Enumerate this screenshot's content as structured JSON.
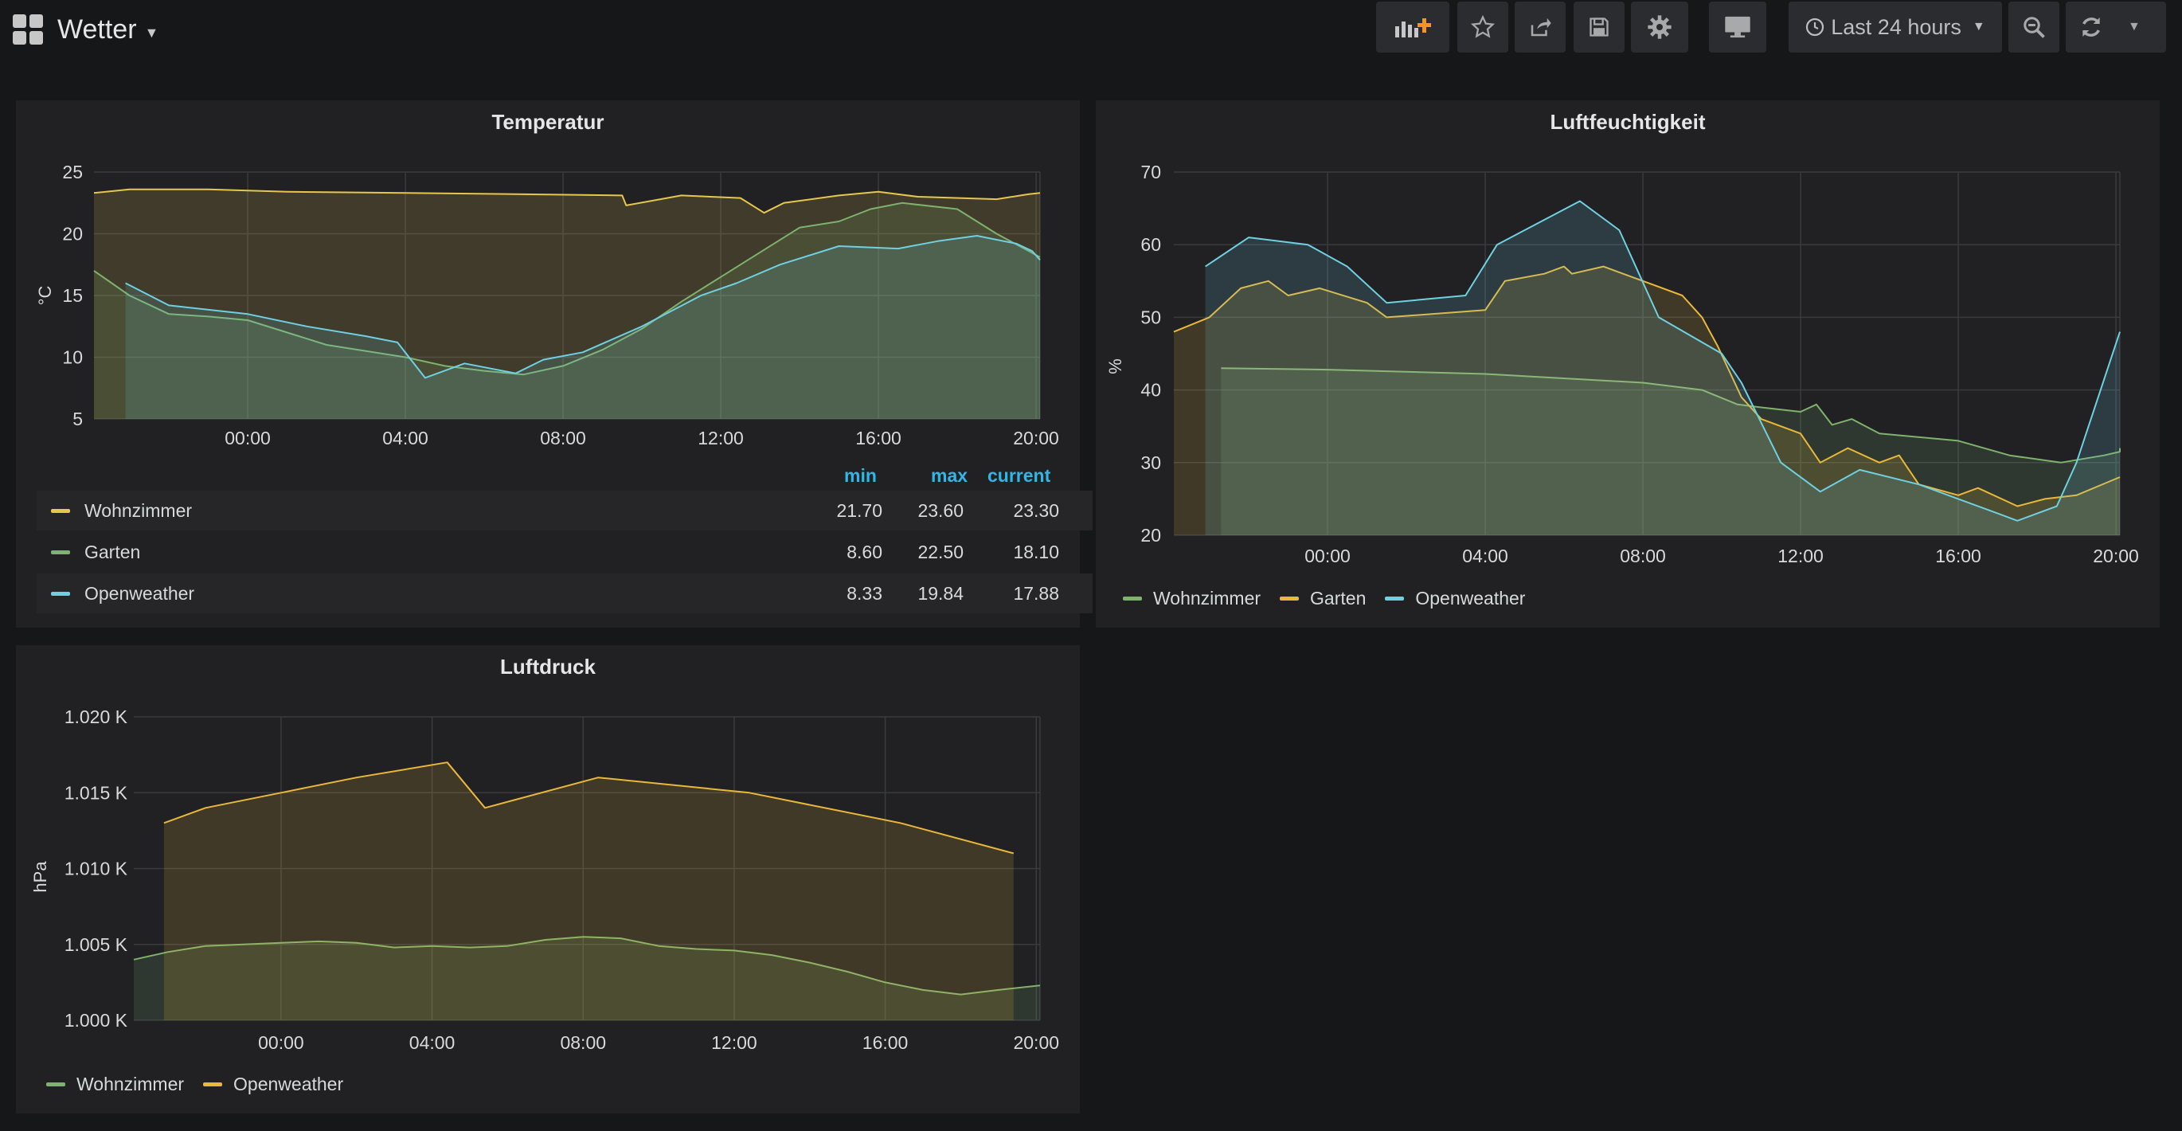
{
  "dashboard": {
    "title": "Wetter"
  },
  "toolbar": {
    "time_range": "Last 24 hours",
    "buttons": [
      "add-panel-icon",
      "star-icon",
      "share-icon",
      "save-icon",
      "gear-icon",
      "monitor-icon",
      "zoom-out-icon",
      "refresh-icon",
      "chevron-down-icon"
    ]
  },
  "colors": {
    "yellow": "#e5c74b",
    "green": "#7eb26d",
    "blue": "#6ed0e0",
    "orange": "#eab839",
    "bg": "#161719",
    "panel": "#212124",
    "accent": "#33b5e5"
  },
  "chart_data": [
    {
      "type": "area",
      "title": "Temperatur",
      "ylabel": "°C",
      "ylim": [
        5,
        25
      ],
      "yticks": [
        "25",
        "20",
        "15",
        "10",
        "5"
      ],
      "xticks": [
        "00:00",
        "04:00",
        "08:00",
        "12:00",
        "16:00",
        "20:00"
      ],
      "xrange_hours": [
        -3.9,
        20.1
      ],
      "series": [
        {
          "name": "Wohnzimmer",
          "color": "#e5c74b",
          "points": [
            [
              -3.9,
              23.3
            ],
            [
              -3,
              23.6
            ],
            [
              -1,
              23.6
            ],
            [
              1,
              23.4
            ],
            [
              4,
              23.3
            ],
            [
              7,
              23.2
            ],
            [
              9.5,
              23.1
            ],
            [
              9.6,
              22.3
            ],
            [
              11,
              23.1
            ],
            [
              12.5,
              22.9
            ],
            [
              13.1,
              21.7
            ],
            [
              13.6,
              22.5
            ],
            [
              15,
              23.1
            ],
            [
              16,
              23.4
            ],
            [
              17,
              23.0
            ],
            [
              19,
              22.8
            ],
            [
              19.8,
              23.2
            ],
            [
              20.1,
              23.3
            ]
          ]
        },
        {
          "name": "Garten",
          "color": "#7eb26d",
          "points": [
            [
              -3.9,
              17.0
            ],
            [
              -3,
              15.0
            ],
            [
              -2,
              13.5
            ],
            [
              -1,
              13.3
            ],
            [
              0,
              13.0
            ],
            [
              1,
              12.0
            ],
            [
              2,
              11.0
            ],
            [
              3,
              10.5
            ],
            [
              4,
              10.0
            ],
            [
              5,
              9.3
            ],
            [
              6,
              8.9
            ],
            [
              7,
              8.6
            ],
            [
              8,
              9.3
            ],
            [
              9,
              10.6
            ],
            [
              10,
              12.3
            ],
            [
              11,
              14.5
            ],
            [
              12,
              16.5
            ],
            [
              13,
              18.5
            ],
            [
              14,
              20.5
            ],
            [
              15,
              21.0
            ],
            [
              15.8,
              22.0
            ],
            [
              16.6,
              22.5
            ],
            [
              18,
              22.0
            ],
            [
              19,
              20.0
            ],
            [
              20.1,
              18.1
            ]
          ]
        },
        {
          "name": "Openweather",
          "color": "#6ed0e0",
          "points": [
            [
              -3.1,
              16.0
            ],
            [
              -2,
              14.2
            ],
            [
              0,
              13.5
            ],
            [
              1.5,
              12.5
            ],
            [
              3,
              11.7
            ],
            [
              3.8,
              11.2
            ],
            [
              4.5,
              8.33
            ],
            [
              5.5,
              9.5
            ],
            [
              6.8,
              8.7
            ],
            [
              7.5,
              9.8
            ],
            [
              8.5,
              10.4
            ],
            [
              10,
              12.5
            ],
            [
              11.5,
              15.0
            ],
            [
              12.4,
              16.0
            ],
            [
              13.5,
              17.5
            ],
            [
              15,
              19.0
            ],
            [
              16.5,
              18.8
            ],
            [
              17.5,
              19.4
            ],
            [
              18.5,
              19.84
            ],
            [
              19.5,
              19.2
            ],
            [
              19.9,
              18.6
            ],
            [
              20.1,
              17.88
            ]
          ]
        }
      ],
      "legend": {
        "columns": [
          "min",
          "max",
          "current"
        ],
        "rows": [
          {
            "name": "Wohnzimmer",
            "color": "#e5c74b",
            "min": "21.70",
            "max": "23.60",
            "current": "23.30"
          },
          {
            "name": "Garten",
            "color": "#7eb26d",
            "min": "8.60",
            "max": "22.50",
            "current": "18.10"
          },
          {
            "name": "Openweather",
            "color": "#6ed0e0",
            "min": "8.33",
            "max": "19.84",
            "current": "17.88"
          }
        ]
      }
    },
    {
      "type": "area",
      "title": "Luftfeuchtigkeit",
      "ylabel": "%",
      "ylim": [
        20,
        70
      ],
      "yticks": [
        "70",
        "60",
        "50",
        "40",
        "30",
        "20"
      ],
      "xticks": [
        "00:00",
        "04:00",
        "08:00",
        "12:00",
        "16:00",
        "20:00"
      ],
      "xrange_hours": [
        -3.9,
        20.1
      ],
      "series": [
        {
          "name": "Wohnzimmer",
          "color": "#7eb26d",
          "points": [
            [
              -2.7,
              43
            ],
            [
              0,
              42.8
            ],
            [
              4,
              42.2
            ],
            [
              8,
              41
            ],
            [
              9.5,
              40
            ],
            [
              10.4,
              38
            ],
            [
              11,
              37.6
            ],
            [
              12,
              37
            ],
            [
              12.4,
              38
            ],
            [
              12.8,
              35.2
            ],
            [
              13.3,
              36
            ],
            [
              14,
              34
            ],
            [
              16,
              33
            ],
            [
              17.3,
              31
            ],
            [
              18.6,
              30
            ],
            [
              19.7,
              31
            ],
            [
              20.1,
              31.5
            ],
            [
              20.1,
              32
            ]
          ]
        },
        {
          "name": "Garten",
          "color": "#eab839",
          "points": [
            [
              -3.9,
              48
            ],
            [
              -3,
              50
            ],
            [
              -2.2,
              54
            ],
            [
              -1.5,
              55
            ],
            [
              -1,
              53
            ],
            [
              -0.2,
              54
            ],
            [
              1,
              52
            ],
            [
              1.5,
              50
            ],
            [
              4,
              51
            ],
            [
              4.5,
              55
            ],
            [
              5.5,
              56
            ],
            [
              6,
              57
            ],
            [
              6.2,
              56
            ],
            [
              7,
              57
            ],
            [
              8,
              55
            ],
            [
              9,
              53
            ],
            [
              9.5,
              50
            ],
            [
              9.9,
              46
            ],
            [
              10.5,
              39
            ],
            [
              11,
              36
            ],
            [
              12,
              34
            ],
            [
              12.5,
              30
            ],
            [
              13.2,
              32
            ],
            [
              14,
              30
            ],
            [
              14.5,
              31
            ],
            [
              15,
              27
            ],
            [
              16,
              25.5
            ],
            [
              16.5,
              26.5
            ],
            [
              17.5,
              24
            ],
            [
              18.2,
              25
            ],
            [
              19,
              25.5
            ],
            [
              20.1,
              28
            ]
          ]
        },
        {
          "name": "Openweather",
          "color": "#6ed0e0",
          "points": [
            [
              -3.1,
              57
            ],
            [
              -2,
              61
            ],
            [
              -0.5,
              60
            ],
            [
              0.5,
              57
            ],
            [
              1.5,
              52
            ],
            [
              3.5,
              53
            ],
            [
              4.3,
              60
            ],
            [
              6.4,
              66
            ],
            [
              7.4,
              62
            ],
            [
              8.4,
              50
            ],
            [
              10,
              45
            ],
            [
              10.5,
              41
            ],
            [
              11.5,
              30
            ],
            [
              12.5,
              26
            ],
            [
              13.5,
              29
            ],
            [
              15,
              27
            ],
            [
              16,
              25
            ],
            [
              17,
              23
            ],
            [
              17.5,
              22
            ],
            [
              18.5,
              24
            ],
            [
              19,
              30
            ],
            [
              20.1,
              48
            ]
          ]
        }
      ],
      "legend": {
        "rows": [
          {
            "name": "Wohnzimmer",
            "color": "#7eb26d"
          },
          {
            "name": "Garten",
            "color": "#eab839"
          },
          {
            "name": "Openweather",
            "color": "#6ed0e0"
          }
        ]
      }
    },
    {
      "type": "area",
      "title": "Luftdruck",
      "ylabel": "hPa",
      "ylim": [
        1000,
        1020
      ],
      "yticks": [
        "1.020 K",
        "1.015 K",
        "1.010 K",
        "1.005 K",
        "1.000 K"
      ],
      "xticks": [
        "00:00",
        "04:00",
        "08:00",
        "12:00",
        "16:00",
        "20:00"
      ],
      "xrange_hours": [
        -3.9,
        20.1
      ],
      "series": [
        {
          "name": "Wohnzimmer",
          "color": "#7eb26d",
          "points": [
            [
              -3.9,
              1004.0
            ],
            [
              -3,
              1004.5
            ],
            [
              -2,
              1004.9
            ],
            [
              -1,
              1005.0
            ],
            [
              0,
              1005.1
            ],
            [
              1,
              1005.2
            ],
            [
              2,
              1005.1
            ],
            [
              3,
              1004.8
            ],
            [
              4,
              1004.9
            ],
            [
              5,
              1004.8
            ],
            [
              6,
              1004.9
            ],
            [
              7,
              1005.3
            ],
            [
              8,
              1005.5
            ],
            [
              9,
              1005.4
            ],
            [
              10,
              1004.9
            ],
            [
              11,
              1004.7
            ],
            [
              12,
              1004.6
            ],
            [
              13,
              1004.3
            ],
            [
              14,
              1003.8
            ],
            [
              15,
              1003.2
            ],
            [
              16,
              1002.5
            ],
            [
              17,
              1002.0
            ],
            [
              18,
              1001.7
            ],
            [
              19,
              1002.0
            ],
            [
              20.1,
              1002.3
            ]
          ]
        },
        {
          "name": "Openweather",
          "color": "#eab839",
          "points": [
            [
              -3.1,
              1013
            ],
            [
              -2,
              1014
            ],
            [
              0,
              1015
            ],
            [
              2,
              1016
            ],
            [
              4.4,
              1017
            ],
            [
              5.4,
              1014
            ],
            [
              8.4,
              1016
            ],
            [
              12.4,
              1015
            ],
            [
              16.4,
              1013
            ],
            [
              19.4,
              1011
            ]
          ]
        }
      ],
      "legend": {
        "rows": [
          {
            "name": "Wohnzimmer",
            "color": "#7eb26d"
          },
          {
            "name": "Openweather",
            "color": "#eab839"
          }
        ]
      }
    }
  ]
}
